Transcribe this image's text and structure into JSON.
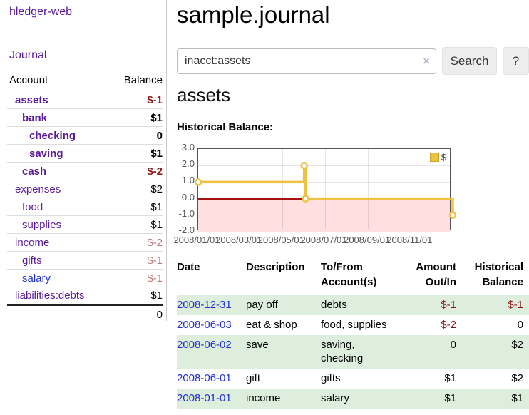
{
  "app": {
    "brand": "hledger-web"
  },
  "nav": {
    "journal": "Journal"
  },
  "colors": {
    "link_purple": "#5b1a9b",
    "link_blue": "#2230d6",
    "negative_strong": "#8b1515",
    "negative_soft": "#bd7878",
    "row_highlight_green": "#ddeedd",
    "series_yellow": "#edc240"
  },
  "sidebar": {
    "header": {
      "account": "Account",
      "balance": "Balance"
    },
    "rows": [
      {
        "account": "assets",
        "balance": "$-1"
      },
      {
        "account": "bank",
        "balance": "$1"
      },
      {
        "account": "checking",
        "balance": "0"
      },
      {
        "account": "saving",
        "balance": "$1"
      },
      {
        "account": "cash",
        "balance": "$-2"
      },
      {
        "account": "expenses",
        "balance": "$2"
      },
      {
        "account": "food",
        "balance": "$1"
      },
      {
        "account": "supplies",
        "balance": "$1"
      },
      {
        "account": "income",
        "balance": "$-2"
      },
      {
        "account": "gifts",
        "balance": "$-1"
      },
      {
        "account": "salary",
        "balance": "$-1"
      },
      {
        "account": "liabilities:debts",
        "balance": "$1"
      }
    ],
    "total": "0"
  },
  "header": {
    "title": "sample.journal"
  },
  "search": {
    "value": "inacct:assets",
    "clear_icon": "×",
    "search_button": "Search",
    "help_button": "?"
  },
  "register": {
    "account_title": "assets",
    "chart_label": "Historical Balance:",
    "table": {
      "headers": {
        "date": "Date",
        "sort_icon": "∧",
        "description": "Description",
        "accounts": "To/From Account(s)",
        "amount": "Amount Out/In",
        "balance": "Historical Balance"
      },
      "rows": [
        {
          "date": "2008-12-31",
          "description": "pay off",
          "accounts": "debts",
          "amount": "$-1",
          "balance": "$-1"
        },
        {
          "date": "2008-06-03",
          "description": "eat & shop",
          "accounts": "food, supplies",
          "amount": "$-2",
          "balance": "0"
        },
        {
          "date": "2008-06-02",
          "description": "save",
          "accounts": "saving, checking",
          "amount": "0",
          "balance": "$2"
        },
        {
          "date": "2008-06-01",
          "description": "gift",
          "accounts": "gifts",
          "amount": "$1",
          "balance": "$2"
        },
        {
          "date": "2008-01-01",
          "description": "income",
          "accounts": "salary",
          "amount": "$1",
          "balance": "$1"
        }
      ]
    }
  },
  "chart_data": {
    "type": "line",
    "step": true,
    "title": "Historical Balance:",
    "series": [
      {
        "name": "$",
        "color": "#edc240",
        "points": [
          [
            "2008-01-01",
            1
          ],
          [
            "2008-06-01",
            2
          ],
          [
            "2008-06-03",
            0
          ],
          [
            "2008-12-31",
            -1
          ]
        ]
      }
    ],
    "x_range": [
      "2008-01-01",
      "2008-12-31"
    ],
    "ylim": [
      -2,
      3
    ],
    "y_ticks": [
      "3.0",
      "2.0",
      "1.0",
      "0.0",
      "-1.0",
      "-2.0"
    ],
    "x_ticks": [
      "2008/01/01",
      "2008/03/01",
      "2008/05/01",
      "2008/07/01",
      "2008/09/01",
      "2008/11/01"
    ],
    "x_tick_dates": [
      "2008-01-01",
      "2008-03-01",
      "2008-05-01",
      "2008-07-01",
      "2008-09-01",
      "2008-11-01"
    ],
    "grid": true,
    "legend": {
      "label": "$",
      "position": "top-right",
      "swatch_color": "#edc240"
    },
    "negative_region_fill": "#ffdfdf",
    "zero_line_color": "#a51212"
  }
}
